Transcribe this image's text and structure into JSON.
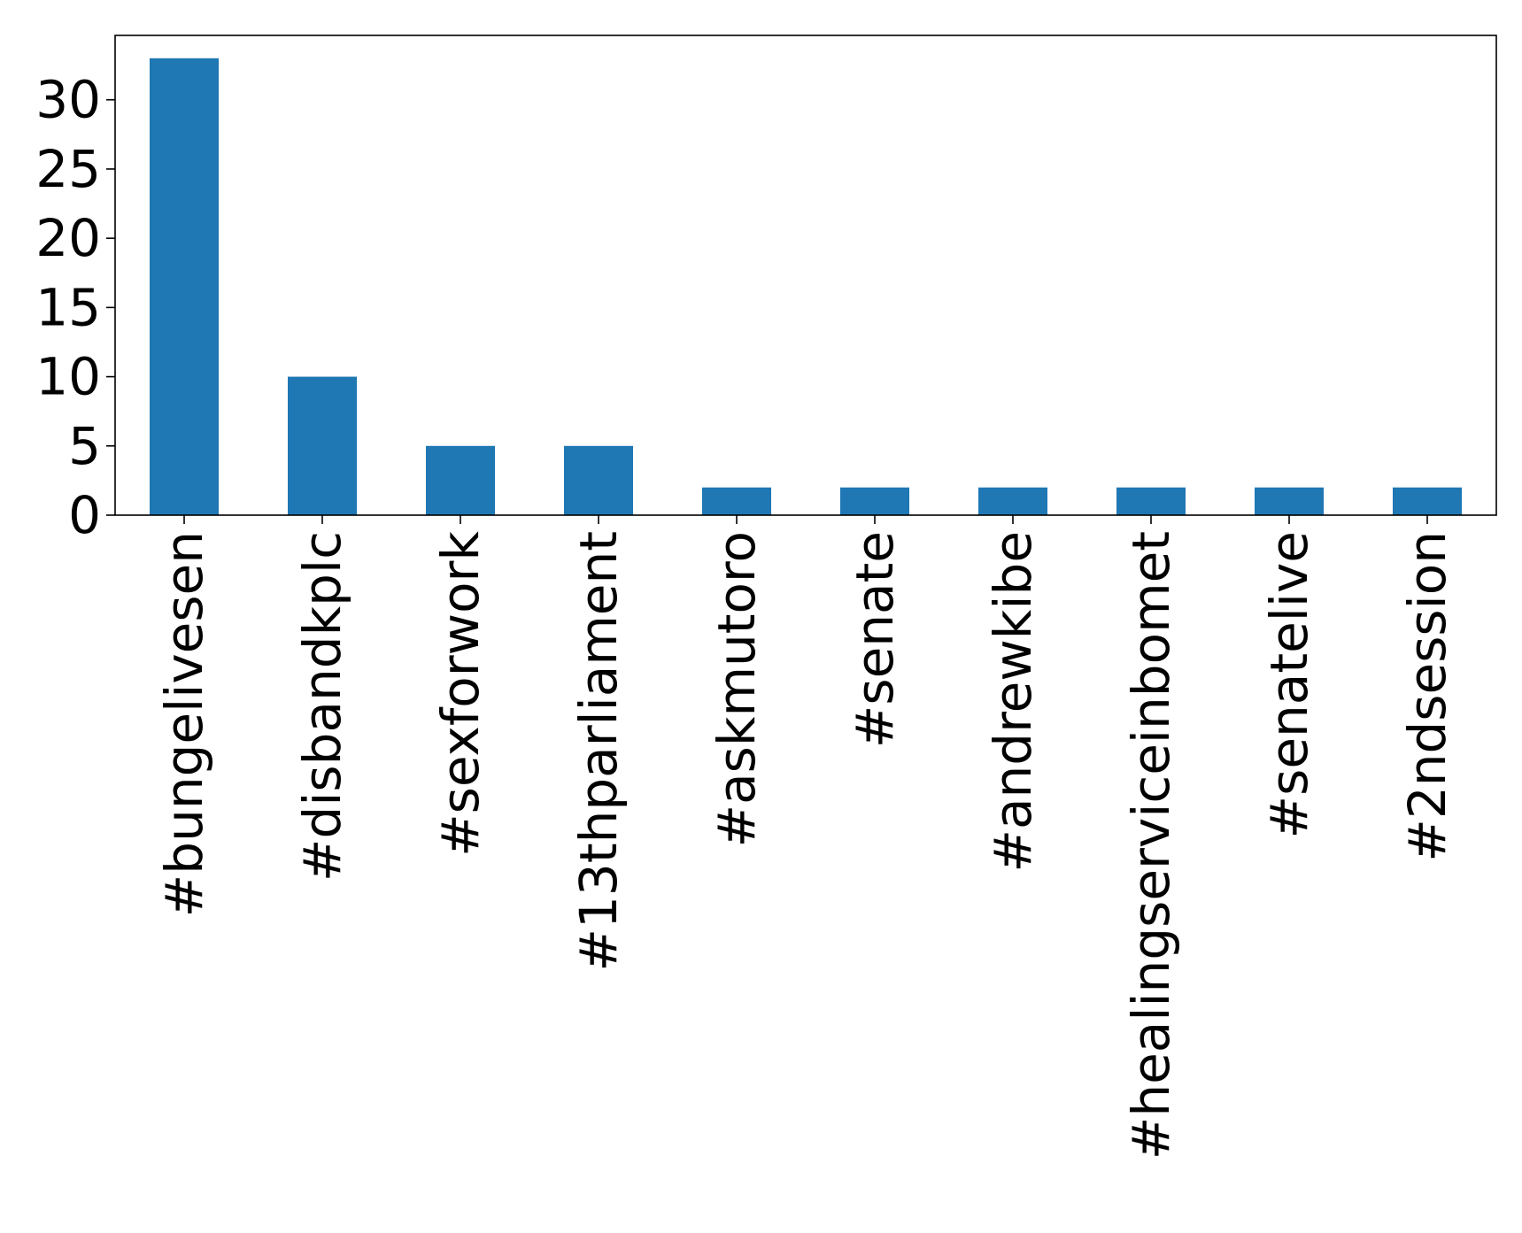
{
  "chart_data": {
    "type": "bar",
    "title": "",
    "xlabel": "",
    "ylabel": "",
    "categories": [
      "#bungelivesen",
      "#disbandkplc",
      "#sexforwork",
      "#13thparliament",
      "#askmutoro",
      "#senate",
      "#andrewkibe",
      "#healingserviceinbomet",
      "#senatelive",
      "#2ndsession"
    ],
    "values": [
      33,
      10,
      5,
      5,
      2,
      2,
      2,
      2,
      2,
      2
    ],
    "ylim": [
      0,
      34.65
    ],
    "yticks": [
      0,
      5,
      10,
      15,
      20,
      25,
      30
    ],
    "grid": false,
    "legend": "none",
    "bar_color": "#1f77b4",
    "axis_color": "#000000"
  }
}
